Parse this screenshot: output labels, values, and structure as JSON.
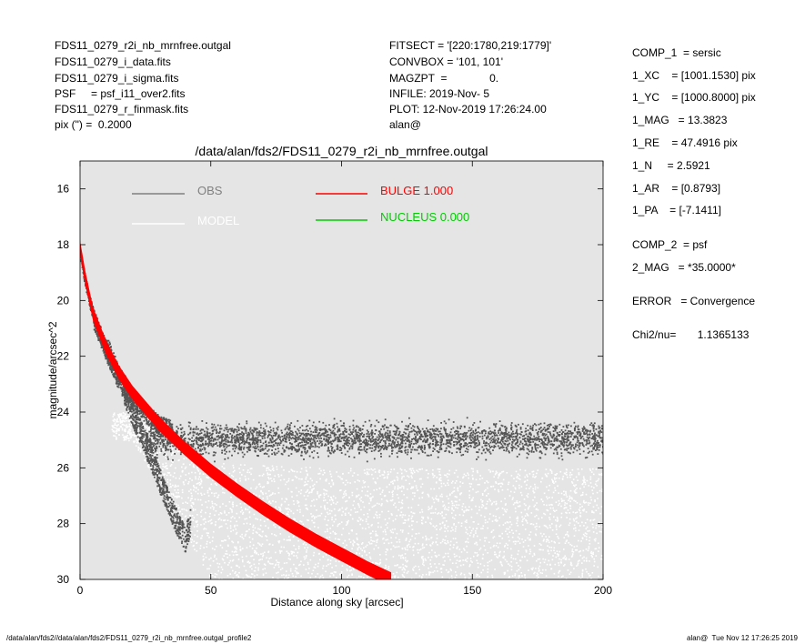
{
  "header_left": [
    "FDS11_0279_r2i_nb_mrnfree.outgal",
    "FDS11_0279_i_data.fits",
    "FDS11_0279_i_sigma.fits",
    "PSF     = psf_i11_over2.fits",
    "FDS11_0279_r_finmask.fits",
    "pix (\") =  0.2000"
  ],
  "header_mid": [
    "FITSECT = '[220:1780,219:1779]'",
    "CONVBOX = '101, 101'",
    "MAGZPT  =              0.",
    "INFILE: 2019-Nov- 5",
    "PLOT: 12-Nov-2019 17:26:24.00",
    "alan@"
  ],
  "params": [
    "COMP_1  = sersic",
    "1_XC    = [1001.1530] pix",
    "1_YC    = [1000.8000] pix",
    "1_MAG   = 13.3823",
    "1_RE    = 47.4916 pix",
    "1_N     = 2.5921",
    "1_AR    = [0.8793]",
    "1_PA    = [-7.1411]",
    "COMP_2  = psf",
    "2_MAG   = *35.0000*",
    "ERROR   = Convergence",
    "Chi2/nu=       1.1365133"
  ],
  "footer": {
    "left": "/data/alan/fds2//data/alan/fds2/FDS11_0279_r2i_nb_mrnfree.outgal_profile2",
    "right": "alan@  Tue Nov 12 17:26:25 2019"
  },
  "colors": {
    "background": "#e5e5e5",
    "obs": "#555555",
    "model": "#ffffff",
    "bulge": "#ff0000",
    "nucleus": "#00cc00"
  },
  "chart_data": {
    "type": "scatter",
    "title": "/data/alan/fds2/FDS11_0279_r2i_nb_mrnfree.outgal",
    "xlabel": "Distance along sky [arcsec]",
    "ylabel": "magnitude/arcsec^2",
    "xlim": [
      0,
      200
    ],
    "ylim": [
      30,
      15
    ],
    "xticks": [
      0,
      50,
      100,
      150,
      200
    ],
    "yticks": [
      16,
      18,
      20,
      22,
      24,
      26,
      28,
      30
    ],
    "legend": [
      {
        "label": "OBS",
        "color": "#808080"
      },
      {
        "label": "MODEL",
        "color": "#ffffff"
      },
      {
        "label": "BULGE  1.000",
        "color": "#ff0000"
      },
      {
        "label": "NUCLEUS  0.000",
        "color": "#00cc00"
      }
    ],
    "series": [
      {
        "name": "OBS",
        "description": "dense scatter of dark-gray points",
        "x": [
          0,
          2,
          5,
          8,
          10,
          12,
          15,
          20,
          25,
          30,
          35,
          40,
          50,
          60,
          80,
          100,
          120,
          150,
          180,
          200
        ],
        "y_upper": [
          18.2,
          19.2,
          20.3,
          21.0,
          21.5,
          21.9,
          22.4,
          23.1,
          23.7,
          24.1,
          24.3,
          24.4,
          24.5,
          24.55,
          24.6,
          24.6,
          24.6,
          24.6,
          24.6,
          24.6
        ],
        "y_lower": [
          18.5,
          19.6,
          20.8,
          21.6,
          22.1,
          22.6,
          23.3,
          24.5,
          25.6,
          26.8,
          28.0,
          29.0,
          25.8,
          25.8,
          25.8,
          25.8,
          25.8,
          25.8,
          25.8,
          25.8
        ]
      },
      {
        "name": "MODEL",
        "description": "white model points extending to faint magnitudes",
        "x": [
          20,
          50,
          100,
          150,
          200
        ],
        "y_upper": [
          24.0,
          25.8,
          26.0,
          26.0,
          26.0
        ],
        "y_lower": [
          25.0,
          30.0,
          30.0,
          30.0,
          30.0
        ]
      },
      {
        "name": "BULGE  1.000",
        "x": [
          0,
          2,
          5,
          10,
          15,
          20,
          30,
          40,
          50,
          60,
          70,
          80,
          90,
          100,
          110,
          119
        ],
        "y": [
          18.1,
          19.2,
          20.5,
          21.7,
          22.6,
          23.3,
          24.4,
          25.3,
          26.1,
          26.8,
          27.45,
          28.05,
          28.6,
          29.1,
          29.6,
          30.0
        ],
        "band_width": 0.5
      },
      {
        "name": "NUCLEUS  0.000",
        "x": [],
        "y": []
      }
    ]
  }
}
